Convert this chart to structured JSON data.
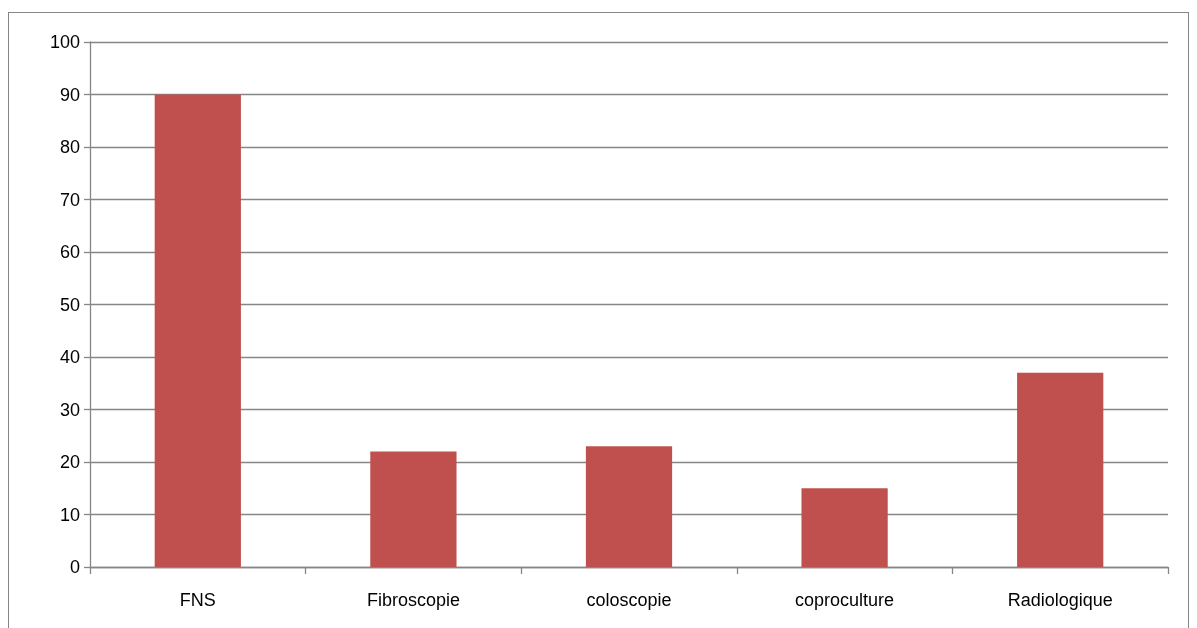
{
  "chart_data": {
    "type": "bar",
    "categories": [
      "FNS",
      "Fibroscopie",
      "coloscopie",
      "coproculture",
      "Radiologique"
    ],
    "values": [
      90,
      22,
      23,
      15,
      37
    ],
    "color": "#c0504d",
    "ylim": [
      0,
      100
    ],
    "yticks": [
      0,
      10,
      20,
      30,
      40,
      50,
      60,
      70,
      80,
      90,
      100
    ],
    "grid": "y"
  }
}
